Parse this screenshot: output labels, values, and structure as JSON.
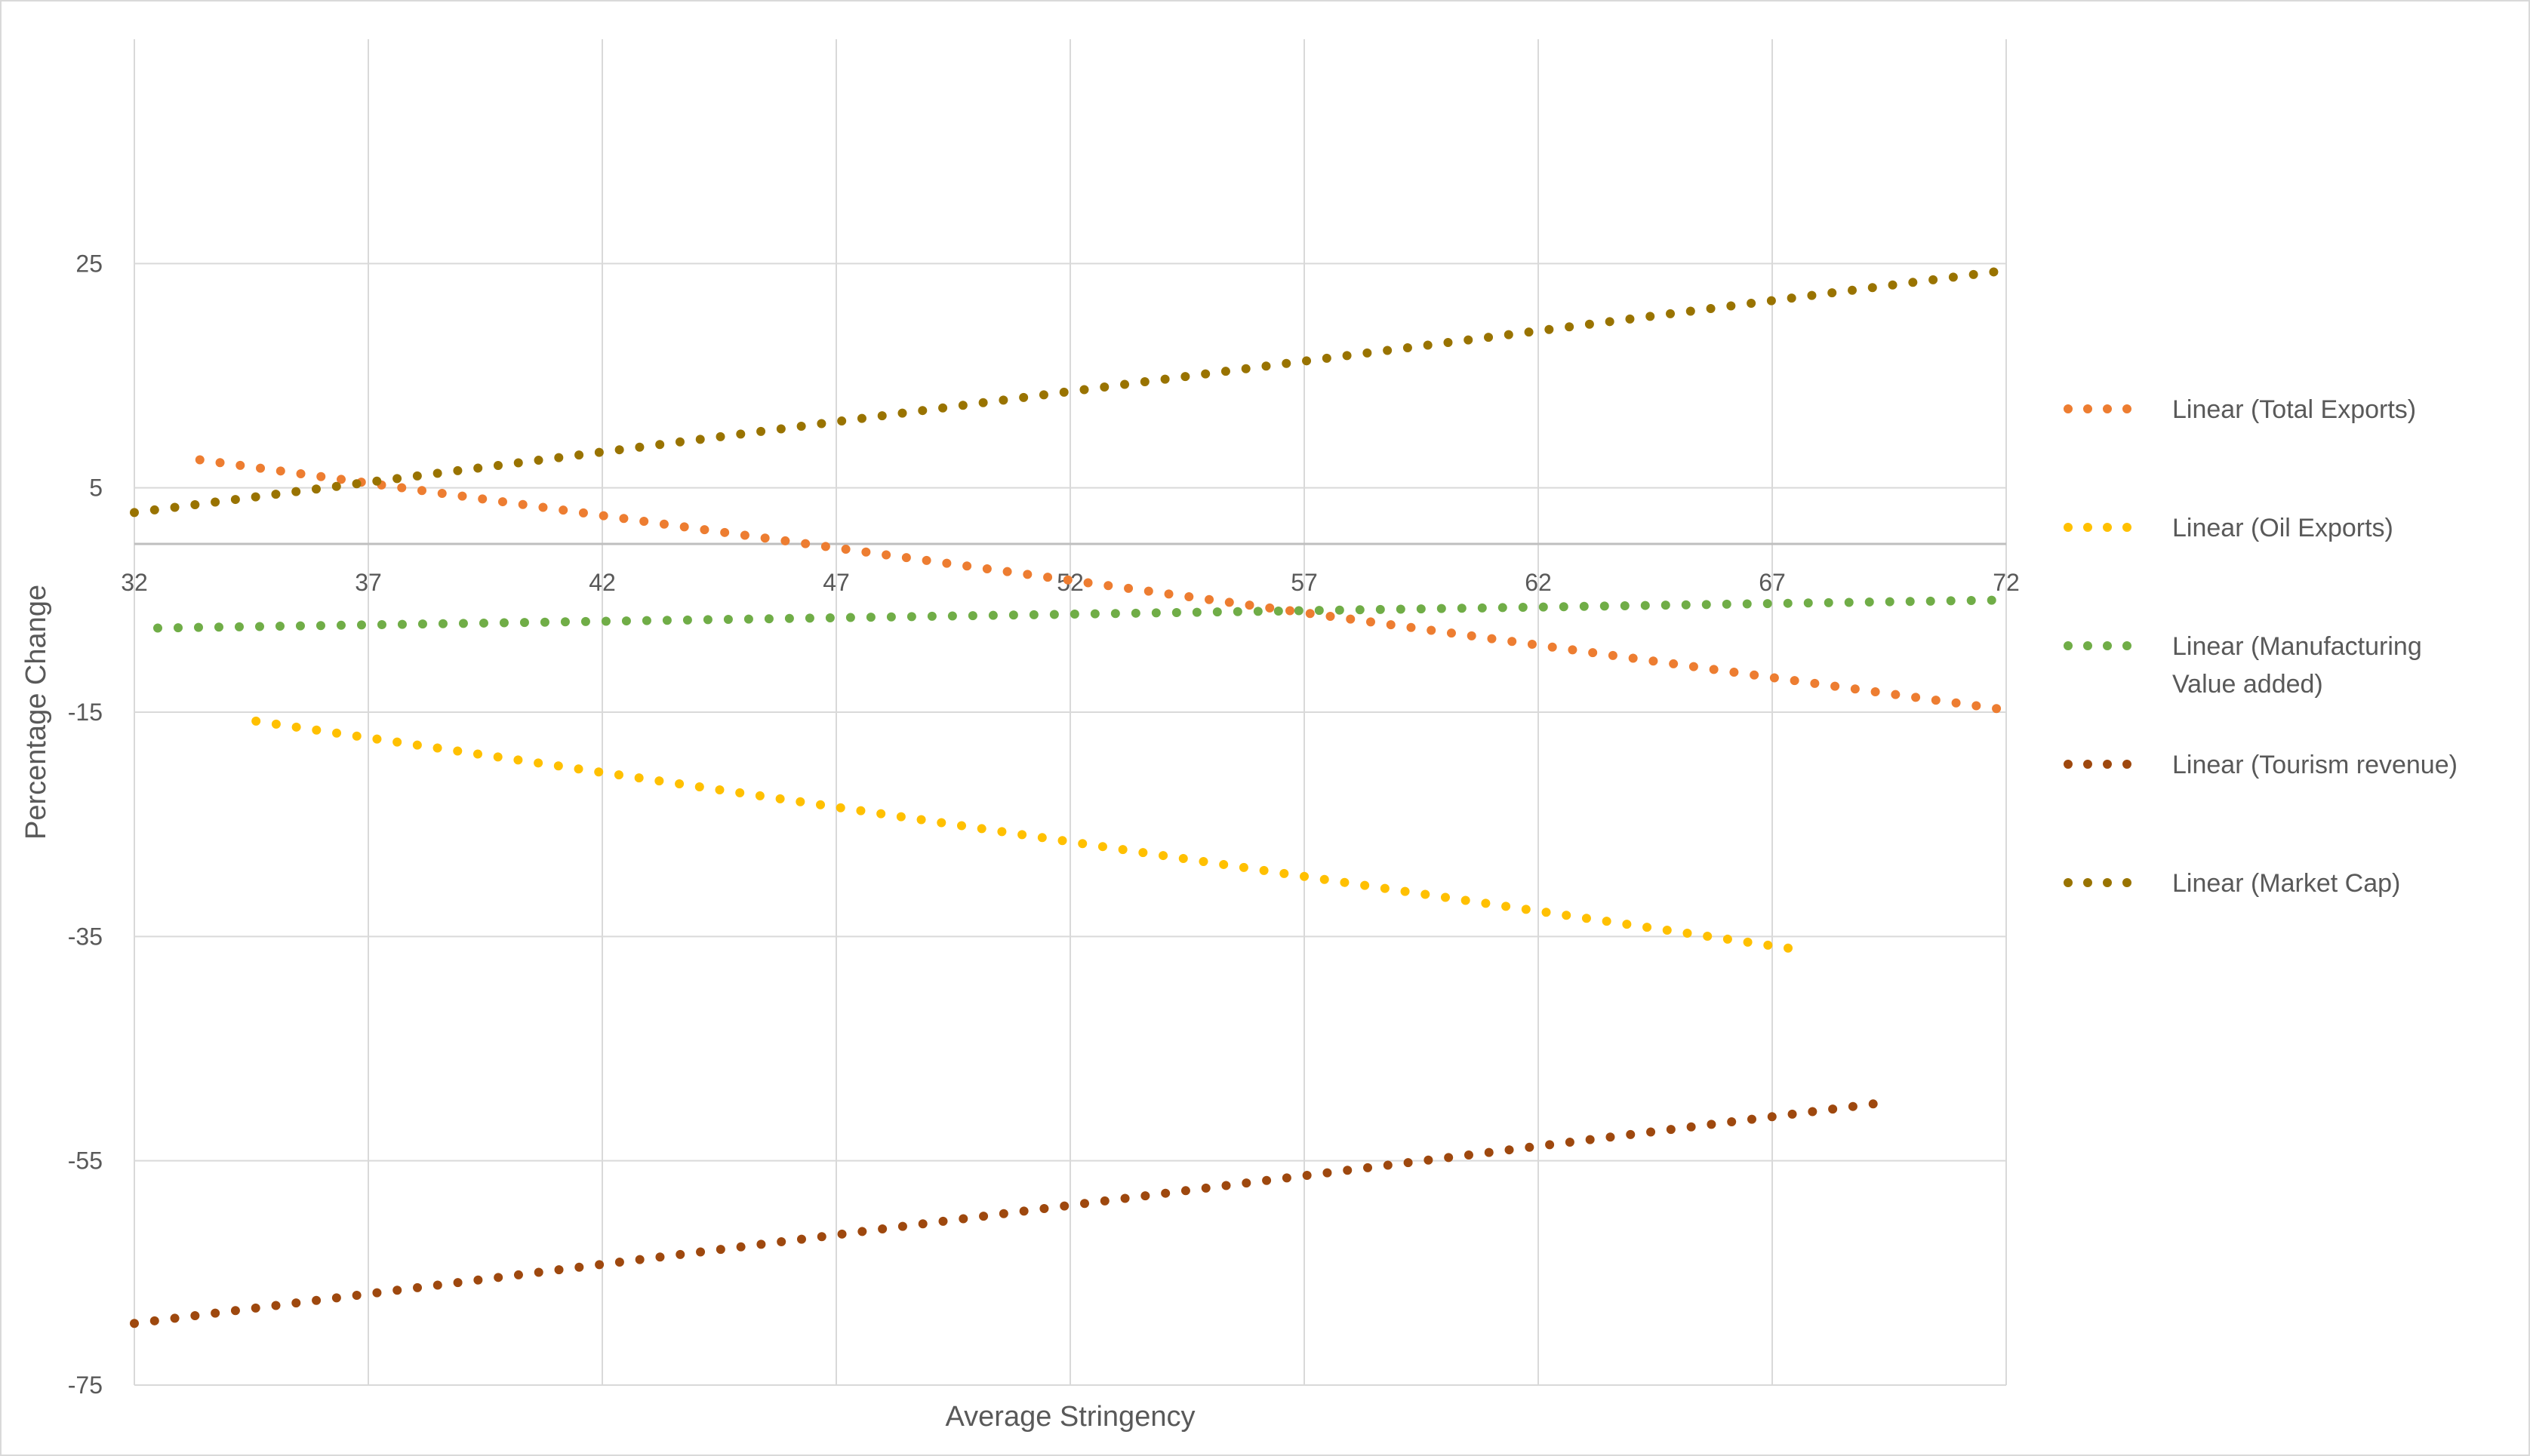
{
  "chart_data": {
    "type": "line",
    "title": "",
    "xlabel": "Average Stringency",
    "ylabel": "Percentage  Change",
    "xlim": [
      32,
      72
    ],
    "ylim": [
      -75,
      45
    ],
    "x_ticks": [
      32,
      37,
      42,
      47,
      52,
      57,
      62,
      67,
      72
    ],
    "y_ticks": [
      25,
      5,
      -15,
      -35,
      -55,
      -75
    ],
    "x_axis_crosses_at": 0,
    "grid": true,
    "legend_position": "right",
    "line_style": "dotted",
    "series": [
      {
        "name": "Linear (Total Exports)",
        "color": "#ED7D31",
        "x": [
          33.4,
          72
        ],
        "y": [
          7.5,
          -14.8
        ]
      },
      {
        "name": "Linear (Oil Exports)",
        "color": "#FFC000",
        "x": [
          34.6,
          67.6
        ],
        "y": [
          -15.8,
          -36.2
        ]
      },
      {
        "name": "Linear (Manufacturing Value added)",
        "color": "#70AD47",
        "x": [
          32.5,
          72
        ],
        "y": [
          -7.5,
          -5
        ]
      },
      {
        "name": "Linear (Tourism revenue)",
        "color": "#9E480E",
        "x": [
          32,
          69.4
        ],
        "y": [
          -69.5,
          -49.8
        ]
      },
      {
        "name": "Linear (Market Cap)",
        "color": "#997300",
        "x": [
          32,
          72
        ],
        "y": [
          2.8,
          24.4
        ]
      }
    ]
  }
}
